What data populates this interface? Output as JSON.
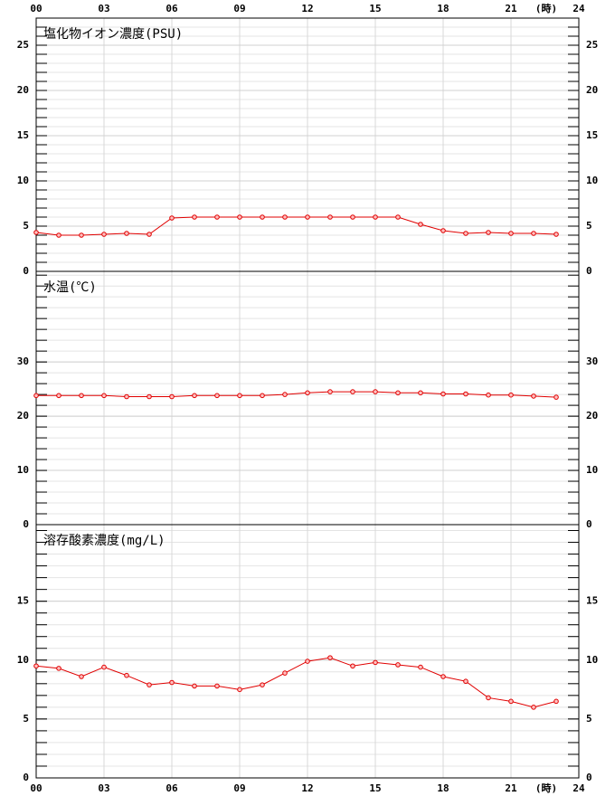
{
  "chart_data": [
    {
      "type": "line",
      "title": "塩化物イオン濃度(PSU)",
      "x_unit": "(時)",
      "x": [
        0,
        1,
        2,
        3,
        4,
        5,
        6,
        7,
        8,
        9,
        10,
        11,
        12,
        13,
        14,
        15,
        16,
        17,
        18,
        19,
        20,
        21,
        22,
        23
      ],
      "xlim": [
        0,
        24
      ],
      "xticks": [
        {
          "value": 0,
          "label": "00"
        },
        {
          "value": 3,
          "label": "03"
        },
        {
          "value": 6,
          "label": "06"
        },
        {
          "value": 9,
          "label": "09"
        },
        12,
        15,
        18,
        21,
        24
      ],
      "ylim": [
        0,
        28
      ],
      "yticks": [
        0,
        5,
        10,
        15,
        20,
        25
      ],
      "minor_ytick_step": 1,
      "grid": true,
      "series": [
        {
          "color": "#e00000",
          "values": [
            4.3,
            4.0,
            4.0,
            4.1,
            4.2,
            4.1,
            5.9,
            6.0,
            6.0,
            6.0,
            6.0,
            6.0,
            6.0,
            6.0,
            6.0,
            6.0,
            6.0,
            5.2,
            4.5,
            4.2,
            4.3,
            4.2,
            4.2,
            4.1
          ]
        }
      ]
    },
    {
      "type": "line",
      "title": "水温(℃)",
      "x": [
        0,
        1,
        2,
        3,
        4,
        5,
        6,
        7,
        8,
        9,
        10,
        11,
        12,
        13,
        14,
        15,
        16,
        17,
        18,
        19,
        20,
        21,
        22,
        23
      ],
      "xlim": [
        0,
        24
      ],
      "xticks": [
        {
          "value": 0,
          "label": "00"
        },
        {
          "value": 3,
          "label": "03"
        },
        {
          "value": 6,
          "label": "06"
        },
        {
          "value": 9,
          "label": "09"
        },
        12,
        15,
        18,
        21,
        24
      ],
      "ylim": [
        0,
        46.7
      ],
      "yticks": [
        0,
        10,
        20,
        30
      ],
      "minor_ytick_step": 2,
      "grid": true,
      "series": [
        {
          "color": "#e00000",
          "values": [
            23.8,
            23.8,
            23.8,
            23.8,
            23.6,
            23.6,
            23.6,
            23.8,
            23.8,
            23.8,
            23.8,
            24.0,
            24.3,
            24.5,
            24.5,
            24.5,
            24.3,
            24.3,
            24.1,
            24.1,
            23.9,
            23.9,
            23.7,
            23.5
          ]
        }
      ]
    },
    {
      "type": "line",
      "title": "溶存酸素濃度(mg/L)",
      "x_unit": "(時)",
      "x": [
        0,
        1,
        2,
        3,
        4,
        5,
        6,
        7,
        8,
        9,
        10,
        11,
        12,
        13,
        14,
        15,
        16,
        17,
        18,
        19,
        20,
        21,
        22,
        23
      ],
      "xlim": [
        0,
        24
      ],
      "xticks": [
        {
          "value": 0,
          "label": "00"
        },
        {
          "value": 3,
          "label": "03"
        },
        {
          "value": 6,
          "label": "06"
        },
        {
          "value": 9,
          "label": "09"
        },
        12,
        15,
        18,
        21,
        24
      ],
      "ylim": [
        0,
        21.5
      ],
      "yticks": [
        0,
        5,
        10,
        15
      ],
      "minor_ytick_step": 1,
      "grid": true,
      "series": [
        {
          "color": "#e00000",
          "values": [
            9.5,
            9.3,
            8.6,
            9.4,
            8.7,
            7.9,
            8.1,
            7.8,
            7.8,
            7.5,
            7.9,
            8.9,
            9.9,
            10.2,
            9.5,
            9.8,
            9.6,
            9.4,
            8.6,
            8.2,
            6.8,
            6.5,
            6.0,
            6.5
          ]
        }
      ]
    }
  ]
}
